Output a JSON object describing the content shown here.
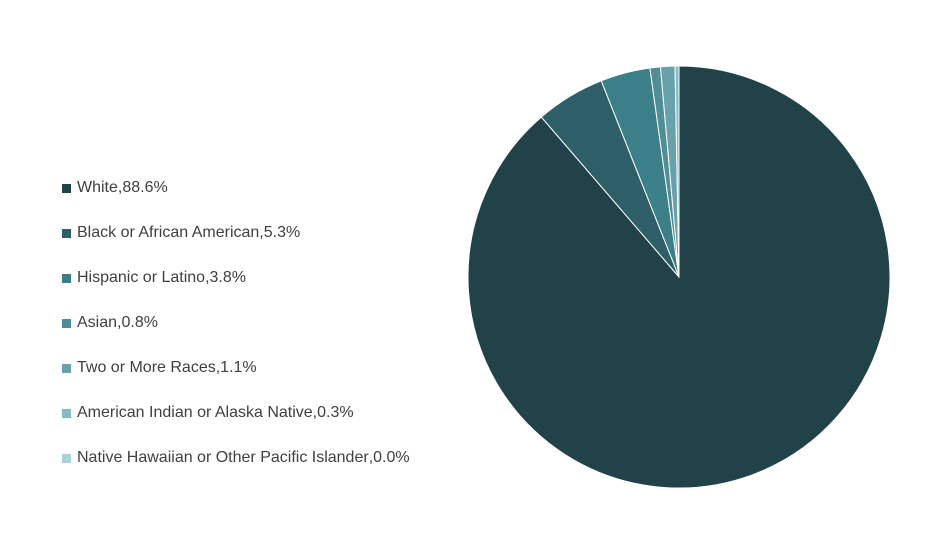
{
  "chart_data": {
    "type": "pie",
    "title": "",
    "legend_position": "left",
    "start_angle": "top",
    "direction": "clockwise",
    "slices": [
      {
        "label": "White",
        "value": 88.6,
        "display": "88.6%",
        "color": "#214249"
      },
      {
        "label": "Black or African American",
        "value": 5.3,
        "display": "5.3%",
        "color": "#2e5e68"
      },
      {
        "label": "Hispanic or Latino",
        "value": 3.8,
        "display": "3.8%",
        "color": "#3b7f89"
      },
      {
        "label": "Asian",
        "value": 0.8,
        "display": "0.8%",
        "color": "#4f8e97"
      },
      {
        "label": "Two or More Races",
        "value": 1.1,
        "display": "1.1%",
        "color": "#68a1a9"
      },
      {
        "label": "American Indian or Alaska Native",
        "value": 0.3,
        "display": "0.3%",
        "color": "#86bbc3"
      },
      {
        "label": "Native Hawaiian or Other Pacific Islander",
        "value": 0.0,
        "display": "0.0%",
        "color": "#a9d3d8"
      }
    ]
  }
}
